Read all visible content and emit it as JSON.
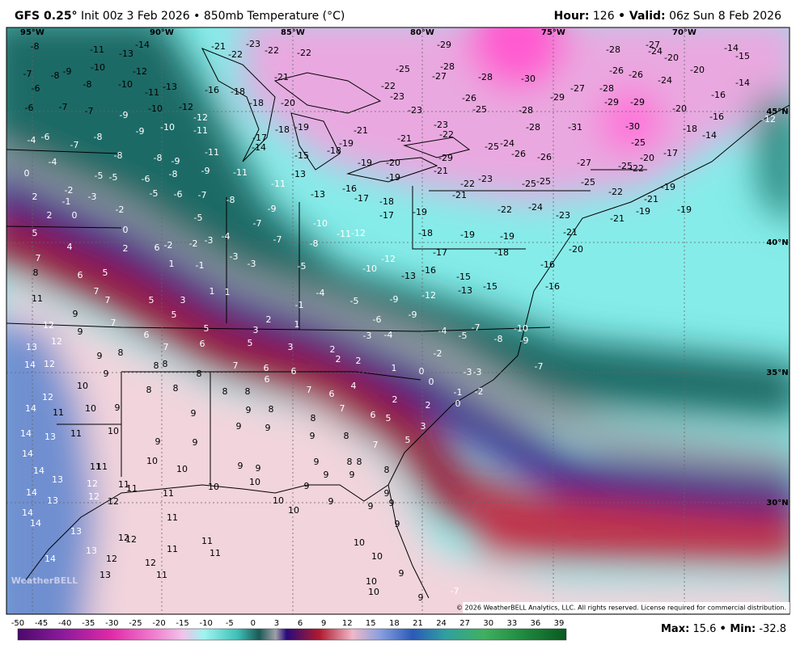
{
  "header": {
    "model": "GFS 0.25°",
    "subtitle": "Init 00z 3 Feb 2026 • 850mb Temperature (°C)",
    "hour_label": "Hour:",
    "hour": "126",
    "valid_label": "• Valid:",
    "valid": "06z Sun 8 Feb 2026"
  },
  "map": {
    "lon_labels": [
      "95°W",
      "90°W",
      "85°W",
      "80°W",
      "75°W",
      "70°W"
    ],
    "lat_labels": [
      "45°N",
      "40°N",
      "35°N",
      "30°N"
    ],
    "labels": [
      -8,
      -11,
      -13,
      -14,
      -21,
      -23,
      -22,
      -22,
      -22,
      -29,
      -28,
      -27,
      -24,
      -20,
      -14,
      -15,
      -7,
      -8,
      -9,
      -10,
      -12,
      -21,
      -25,
      -27,
      -28,
      -28,
      -30,
      -26,
      -26,
      -24,
      -20,
      -14,
      -6,
      -8,
      -10,
      -11,
      -13,
      -16,
      -18,
      -22,
      -23,
      -26,
      -27,
      -28,
      -29,
      -16,
      -6,
      -7,
      -7,
      -9,
      -10,
      -12,
      -18,
      -20,
      -23,
      -25,
      -28,
      -29,
      -29,
      -20,
      -16,
      -12,
      -12,
      -11,
      -10,
      -9,
      -8,
      -6,
      -4,
      -7,
      -18,
      -19,
      -21,
      -23,
      -28,
      -31,
      -30,
      -18,
      -14,
      -17,
      -14,
      -22,
      -21,
      -25,
      -24,
      -26,
      -25,
      -17,
      -19,
      -18,
      -15,
      -8,
      -8,
      -9,
      -11,
      -4,
      -27,
      -25,
      -22,
      -20,
      -26,
      -20,
      -19,
      -29,
      0,
      -5,
      -5,
      -6,
      -8,
      -9,
      -11,
      -13,
      -11,
      -19,
      -21,
      -22,
      -23,
      -25,
      -25,
      -25,
      -19,
      2,
      -2,
      -3,
      -1,
      -5,
      -6,
      -7,
      -8,
      -13,
      -16,
      -17,
      -18,
      -21,
      -22,
      -24,
      -22,
      -21,
      -19,
      -19,
      2,
      0,
      -2,
      -9,
      -5,
      -7,
      -17,
      -19,
      -23,
      -21,
      5,
      4,
      0,
      -10,
      -11,
      -12,
      -7,
      -2,
      -2,
      -3,
      -4,
      2,
      6,
      -8,
      -18,
      -19,
      -19,
      -21,
      -20,
      7,
      8,
      6,
      5,
      1,
      -1,
      -3,
      -3,
      -5,
      -10,
      -12,
      -16,
      -17,
      -18,
      -13,
      -15,
      -16,
      11,
      7,
      7,
      5,
      3,
      1,
      1,
      -4,
      -5,
      -1,
      -9,
      -12,
      -13,
      -15,
      -16,
      9,
      7,
      5,
      2,
      1,
      -6,
      -9,
      12,
      9,
      6,
      5,
      3,
      -3,
      -4,
      -4,
      -5,
      -7,
      -8,
      -10,
      13,
      12,
      9,
      8,
      7,
      6,
      5,
      3,
      2,
      -2,
      -9,
      14,
      12,
      8,
      8,
      7,
      6,
      6,
      2,
      2,
      1,
      0,
      -3,
      -3,
      -7,
      9,
      8,
      10,
      8,
      8,
      8,
      8,
      6,
      7,
      6,
      4,
      0,
      -1,
      -2,
      12,
      14,
      10,
      9,
      9,
      9,
      8,
      8,
      7,
      6,
      5,
      2,
      2,
      0,
      11,
      13,
      11,
      10,
      9,
      9,
      9,
      8,
      7,
      3,
      5,
      14,
      9,
      9,
      10,
      10,
      11,
      11,
      9,
      9,
      9,
      8,
      8,
      9,
      9,
      8,
      14,
      14,
      13,
      12,
      12,
      11,
      11,
      10,
      10,
      9,
      14,
      11,
      9,
      14,
      12,
      13,
      10,
      10,
      9,
      9,
      9,
      14,
      11,
      13,
      12,
      12,
      11,
      11,
      11,
      9,
      10,
      14,
      13,
      12,
      12,
      13,
      11,
      10,
      9,
      10,
      10,
      9,
      -7
    ],
    "logo": "WeatherBELL",
    "copyright": "© 2026 WeatherBELL Analytics, LLC. All rights reserved. License required for commercial distribution."
  },
  "colorbar": {
    "ticks": [
      -50,
      -45,
      -40,
      -35,
      -30,
      -25,
      -20,
      -15,
      -10,
      -5,
      0,
      3,
      6,
      9,
      12,
      15,
      18,
      21,
      24,
      27,
      30,
      33,
      36,
      39
    ]
  },
  "footer": {
    "max_label": "Max:",
    "max": 15.6,
    "min_label": "• Min:",
    "min": -32.8
  }
}
